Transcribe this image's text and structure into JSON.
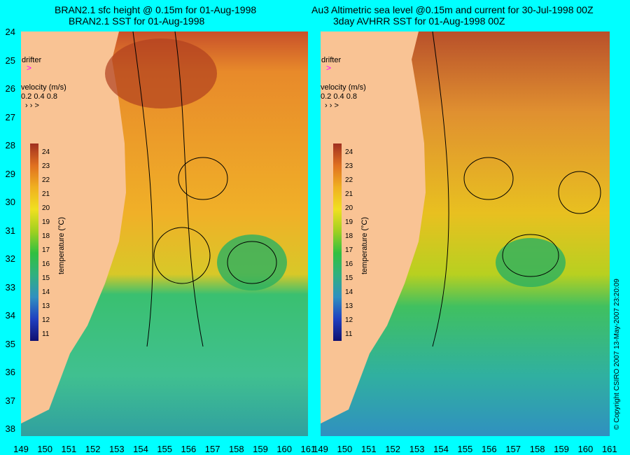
{
  "titles": {
    "left_line1": "BRAN2.1 sfc height @ 0.15m for 01-Aug-1998",
    "left_line2": "BRAN2.1 SST for 01-Aug-1998",
    "right_line1": "Au3 Altimetric sea level  @0.15m and current for 30-Jul-1998 00Z",
    "right_line2": "3day AVHRR SST for 01-Aug-1998 00Z"
  },
  "axes": {
    "y_ticks": [
      "24",
      "25",
      "26",
      "27",
      "28",
      "29",
      "30",
      "31",
      "32",
      "33",
      "34",
      "35",
      "36",
      "37",
      "38"
    ],
    "x_ticks_left": [
      "149",
      "150",
      "151",
      "152",
      "153",
      "154",
      "155",
      "156",
      "157",
      "158",
      "159",
      "160",
      "161"
    ],
    "x_ticks_right": [
      "149",
      "150",
      "151",
      "152",
      "153",
      "154",
      "155",
      "156",
      "157",
      "158",
      "159",
      "160",
      "161"
    ]
  },
  "legend": {
    "drifter_label": "drifter",
    "velocity_label": "velocity (m/s)",
    "velocity_values": "0.2 0.4 0.8",
    "colorbar_title": "temperature (°C)",
    "colorbar_ticks": [
      "24",
      "23",
      "22",
      "21",
      "20",
      "19",
      "18",
      "17",
      "16",
      "15",
      "14",
      "13",
      "12",
      "11"
    ]
  },
  "copyright": "© Copyright CSIRO 2007   13-May-2007 23:20:09",
  "colors": {
    "background": "#00ffff",
    "land": "#f9c394",
    "warm": "#e8701a",
    "cool": "#33c080",
    "drifter": "#ff00ff"
  }
}
